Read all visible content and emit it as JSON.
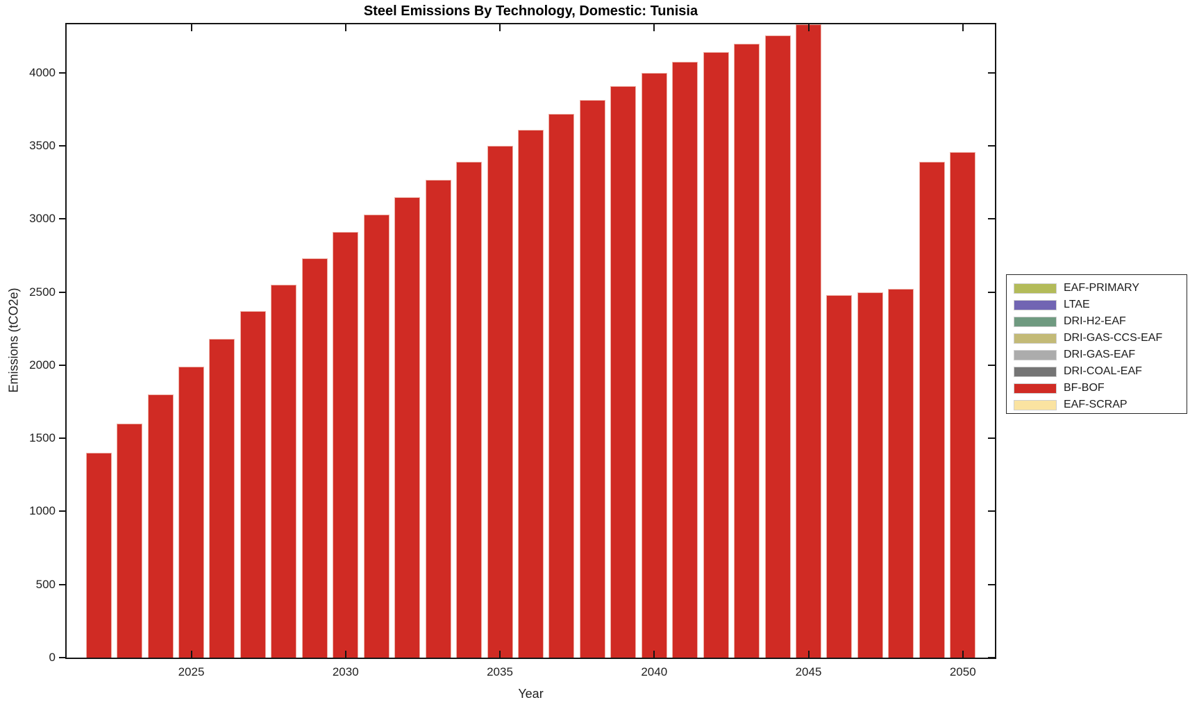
{
  "chart_data": {
    "type": "bar",
    "title": "Steel Emissions By Technology, Domestic: Tunisia",
    "xlabel": "Year",
    "ylabel": "Emissions (tCO2e)",
    "ylim": [
      0,
      4332
    ],
    "grid": false,
    "legend_position": "right-outside",
    "xticks": [
      2025,
      2030,
      2035,
      2040,
      2045,
      2050
    ],
    "yticks": [
      0,
      500,
      1000,
      1500,
      2000,
      2500,
      3000,
      3500,
      4000
    ],
    "years": [
      2022,
      2023,
      2024,
      2025,
      2026,
      2027,
      2028,
      2029,
      2030,
      2031,
      2032,
      2033,
      2034,
      2035,
      2036,
      2037,
      2038,
      2039,
      2040,
      2041,
      2042,
      2043,
      2044,
      2045,
      2046,
      2047,
      2048,
      2049,
      2050
    ],
    "series": [
      {
        "name": "BF-BOF",
        "color": "#d02b24",
        "values": [
          1400,
          1600,
          1800,
          1990,
          2180,
          2370,
          2550,
          2730,
          2910,
          3030,
          3150,
          3270,
          3390,
          3500,
          3610,
          3720,
          3815,
          3910,
          4000,
          4075,
          4140,
          4200,
          4255,
          4330,
          2480,
          2500,
          2520,
          3390,
          3460
        ]
      }
    ],
    "legend_entries": [
      {
        "label": "EAF-PRIMARY",
        "color": "#b3bb59"
      },
      {
        "label": "LTAE",
        "color": "#7165b3"
      },
      {
        "label": "DRI-H2-EAF",
        "color": "#6f9a80"
      },
      {
        "label": "DRI-GAS-CCS-EAF",
        "color": "#c3ba77"
      },
      {
        "label": "DRI-GAS-EAF",
        "color": "#acacac"
      },
      {
        "label": "DRI-COAL-EAF",
        "color": "#757575"
      },
      {
        "label": "BF-BOF",
        "color": "#d02b24"
      },
      {
        "label": "EAF-SCRAP",
        "color": "#fae3a1"
      }
    ]
  }
}
